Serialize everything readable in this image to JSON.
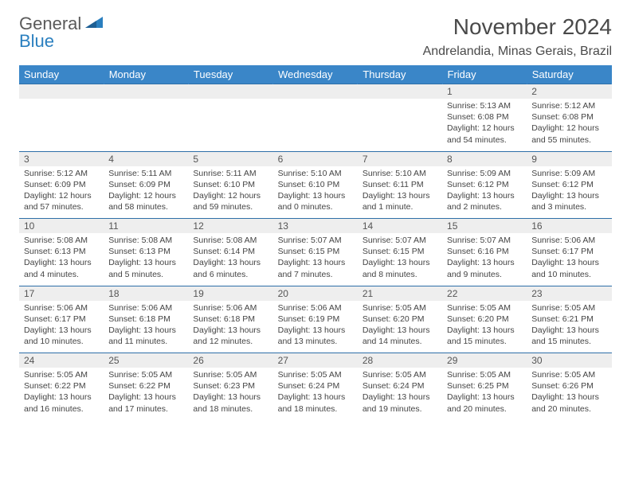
{
  "logo": {
    "line1": "General",
    "line2": "Blue"
  },
  "title": "November 2024",
  "location": "Andrelandia, Minas Gerais, Brazil",
  "colors": {
    "header_bg": "#3a86c8",
    "header_text": "#ffffff",
    "daynum_bg": "#eeeeee",
    "border": "#2e6fa8",
    "body_text": "#3a3a3a",
    "logo_gray": "#5a5a5a",
    "logo_blue": "#2a7fbf"
  },
  "day_names": [
    "Sunday",
    "Monday",
    "Tuesday",
    "Wednesday",
    "Thursday",
    "Friday",
    "Saturday"
  ],
  "weeks": [
    [
      {
        "n": "",
        "sr": "",
        "ss": "",
        "dl": ""
      },
      {
        "n": "",
        "sr": "",
        "ss": "",
        "dl": ""
      },
      {
        "n": "",
        "sr": "",
        "ss": "",
        "dl": ""
      },
      {
        "n": "",
        "sr": "",
        "ss": "",
        "dl": ""
      },
      {
        "n": "",
        "sr": "",
        "ss": "",
        "dl": ""
      },
      {
        "n": "1",
        "sr": "Sunrise: 5:13 AM",
        "ss": "Sunset: 6:08 PM",
        "dl": "Daylight: 12 hours and 54 minutes."
      },
      {
        "n": "2",
        "sr": "Sunrise: 5:12 AM",
        "ss": "Sunset: 6:08 PM",
        "dl": "Daylight: 12 hours and 55 minutes."
      }
    ],
    [
      {
        "n": "3",
        "sr": "Sunrise: 5:12 AM",
        "ss": "Sunset: 6:09 PM",
        "dl": "Daylight: 12 hours and 57 minutes."
      },
      {
        "n": "4",
        "sr": "Sunrise: 5:11 AM",
        "ss": "Sunset: 6:09 PM",
        "dl": "Daylight: 12 hours and 58 minutes."
      },
      {
        "n": "5",
        "sr": "Sunrise: 5:11 AM",
        "ss": "Sunset: 6:10 PM",
        "dl": "Daylight: 12 hours and 59 minutes."
      },
      {
        "n": "6",
        "sr": "Sunrise: 5:10 AM",
        "ss": "Sunset: 6:10 PM",
        "dl": "Daylight: 13 hours and 0 minutes."
      },
      {
        "n": "7",
        "sr": "Sunrise: 5:10 AM",
        "ss": "Sunset: 6:11 PM",
        "dl": "Daylight: 13 hours and 1 minute."
      },
      {
        "n": "8",
        "sr": "Sunrise: 5:09 AM",
        "ss": "Sunset: 6:12 PM",
        "dl": "Daylight: 13 hours and 2 minutes."
      },
      {
        "n": "9",
        "sr": "Sunrise: 5:09 AM",
        "ss": "Sunset: 6:12 PM",
        "dl": "Daylight: 13 hours and 3 minutes."
      }
    ],
    [
      {
        "n": "10",
        "sr": "Sunrise: 5:08 AM",
        "ss": "Sunset: 6:13 PM",
        "dl": "Daylight: 13 hours and 4 minutes."
      },
      {
        "n": "11",
        "sr": "Sunrise: 5:08 AM",
        "ss": "Sunset: 6:13 PM",
        "dl": "Daylight: 13 hours and 5 minutes."
      },
      {
        "n": "12",
        "sr": "Sunrise: 5:08 AM",
        "ss": "Sunset: 6:14 PM",
        "dl": "Daylight: 13 hours and 6 minutes."
      },
      {
        "n": "13",
        "sr": "Sunrise: 5:07 AM",
        "ss": "Sunset: 6:15 PM",
        "dl": "Daylight: 13 hours and 7 minutes."
      },
      {
        "n": "14",
        "sr": "Sunrise: 5:07 AM",
        "ss": "Sunset: 6:15 PM",
        "dl": "Daylight: 13 hours and 8 minutes."
      },
      {
        "n": "15",
        "sr": "Sunrise: 5:07 AM",
        "ss": "Sunset: 6:16 PM",
        "dl": "Daylight: 13 hours and 9 minutes."
      },
      {
        "n": "16",
        "sr": "Sunrise: 5:06 AM",
        "ss": "Sunset: 6:17 PM",
        "dl": "Daylight: 13 hours and 10 minutes."
      }
    ],
    [
      {
        "n": "17",
        "sr": "Sunrise: 5:06 AM",
        "ss": "Sunset: 6:17 PM",
        "dl": "Daylight: 13 hours and 10 minutes."
      },
      {
        "n": "18",
        "sr": "Sunrise: 5:06 AM",
        "ss": "Sunset: 6:18 PM",
        "dl": "Daylight: 13 hours and 11 minutes."
      },
      {
        "n": "19",
        "sr": "Sunrise: 5:06 AM",
        "ss": "Sunset: 6:18 PM",
        "dl": "Daylight: 13 hours and 12 minutes."
      },
      {
        "n": "20",
        "sr": "Sunrise: 5:06 AM",
        "ss": "Sunset: 6:19 PM",
        "dl": "Daylight: 13 hours and 13 minutes."
      },
      {
        "n": "21",
        "sr": "Sunrise: 5:05 AM",
        "ss": "Sunset: 6:20 PM",
        "dl": "Daylight: 13 hours and 14 minutes."
      },
      {
        "n": "22",
        "sr": "Sunrise: 5:05 AM",
        "ss": "Sunset: 6:20 PM",
        "dl": "Daylight: 13 hours and 15 minutes."
      },
      {
        "n": "23",
        "sr": "Sunrise: 5:05 AM",
        "ss": "Sunset: 6:21 PM",
        "dl": "Daylight: 13 hours and 15 minutes."
      }
    ],
    [
      {
        "n": "24",
        "sr": "Sunrise: 5:05 AM",
        "ss": "Sunset: 6:22 PM",
        "dl": "Daylight: 13 hours and 16 minutes."
      },
      {
        "n": "25",
        "sr": "Sunrise: 5:05 AM",
        "ss": "Sunset: 6:22 PM",
        "dl": "Daylight: 13 hours and 17 minutes."
      },
      {
        "n": "26",
        "sr": "Sunrise: 5:05 AM",
        "ss": "Sunset: 6:23 PM",
        "dl": "Daylight: 13 hours and 18 minutes."
      },
      {
        "n": "27",
        "sr": "Sunrise: 5:05 AM",
        "ss": "Sunset: 6:24 PM",
        "dl": "Daylight: 13 hours and 18 minutes."
      },
      {
        "n": "28",
        "sr": "Sunrise: 5:05 AM",
        "ss": "Sunset: 6:24 PM",
        "dl": "Daylight: 13 hours and 19 minutes."
      },
      {
        "n": "29",
        "sr": "Sunrise: 5:05 AM",
        "ss": "Sunset: 6:25 PM",
        "dl": "Daylight: 13 hours and 20 minutes."
      },
      {
        "n": "30",
        "sr": "Sunrise: 5:05 AM",
        "ss": "Sunset: 6:26 PM",
        "dl": "Daylight: 13 hours and 20 minutes."
      }
    ]
  ]
}
